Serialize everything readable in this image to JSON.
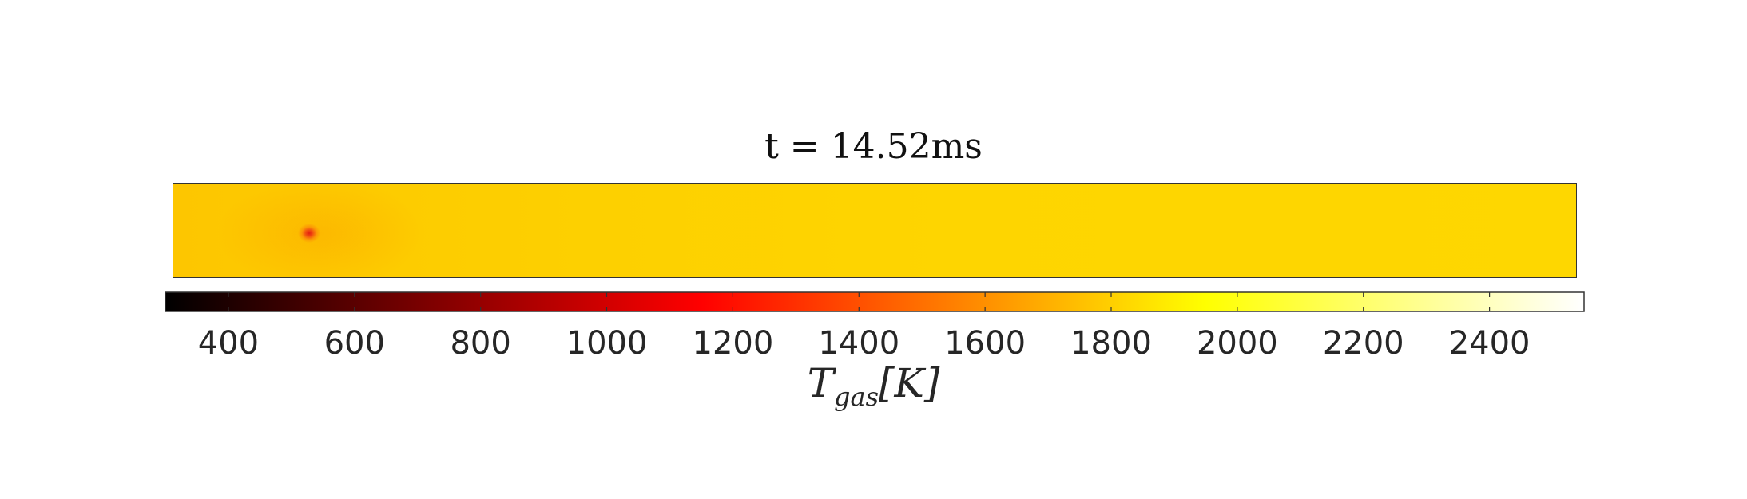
{
  "chart_data": {
    "type": "heatmap",
    "title": "t = 14.52ms",
    "colorbar": {
      "label": "T_gas[K]",
      "label_display": "Tgas[K]",
      "range": [
        300,
        2550
      ],
      "ticks": [
        400,
        600,
        800,
        1000,
        1200,
        1400,
        1600,
        1800,
        2000,
        2200,
        2400
      ],
      "tick_labels": [
        "400",
        "600",
        "800",
        "1000",
        "1200",
        "1400",
        "1600",
        "1800",
        "2000",
        "2200",
        "2400"
      ],
      "colormap": "hot",
      "colormap_stops": [
        {
          "value": 300,
          "color": "#000000"
        },
        {
          "value": 1150,
          "color": "#ff0000"
        },
        {
          "value": 1950,
          "color": "#ffff00"
        },
        {
          "value": 2550,
          "color": "#ffffff"
        }
      ]
    },
    "field": {
      "description_values": {
        "background_temperature_approx": 1850,
        "hot_spot_temperature_approx": 1250
      },
      "grid": false
    }
  }
}
